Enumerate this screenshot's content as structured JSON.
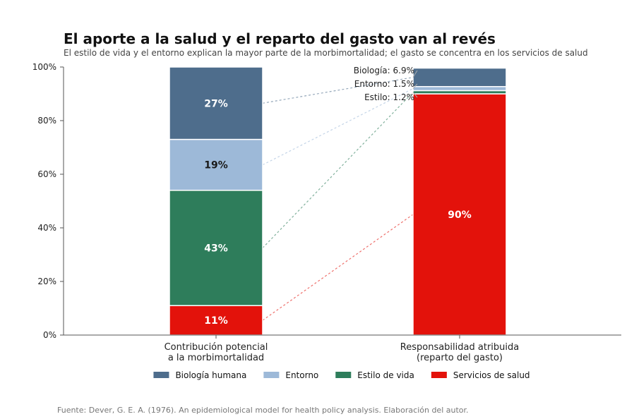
{
  "chart_data": {
    "type": "bar",
    "stacked": true,
    "title": "El aporte a la salud y el reparto del gasto van al revés",
    "subtitle": "El estilo de vida y el entorno explican la mayor parte de la morbimortalidad; el gasto se concentra en los servicios de salud",
    "categories": [
      [
        "Contribución potencial",
        "a la morbimortalidad"
      ],
      [
        "Responsabilidad atribuida",
        "(reparto del gasto)"
      ]
    ],
    "ylim": [
      0,
      100
    ],
    "yticks": [
      0,
      20,
      40,
      60,
      80,
      100
    ],
    "ytick_labels": [
      "0%",
      "20%",
      "40%",
      "60%",
      "80%",
      "100%"
    ],
    "series": [
      {
        "name": "Servicios de salud",
        "color": "#e3120b",
        "text_color": "#ffffff",
        "values": [
          11,
          90
        ],
        "labels": [
          "11%",
          "90%"
        ]
      },
      {
        "name": "Estilo de vida",
        "color": "#2e7d5b",
        "text_color": "#ffffff",
        "values": [
          43,
          1.2
        ],
        "labels": [
          "43%",
          ""
        ]
      },
      {
        "name": "Entorno",
        "color": "#9db9d8",
        "text_color": "#1a1a1a",
        "values": [
          19,
          1.5
        ],
        "labels": [
          "19%",
          ""
        ]
      },
      {
        "name": "Biología humana",
        "color": "#4e6d8c",
        "text_color": "#ffffff",
        "values": [
          27,
          6.9
        ],
        "labels": [
          "27%",
          ""
        ]
      }
    ],
    "annotations": [
      {
        "text": "Biología: 6.9%",
        "series": "Biología humana"
      },
      {
        "text": "Entorno: 1.5%",
        "series": "Entorno"
      },
      {
        "text": "Estilo: 1.2%",
        "series": "Estilo de vida"
      }
    ],
    "legend": {
      "placement": "bottom",
      "order": [
        "Biología humana",
        "Entorno",
        "Estilo de vida",
        "Servicios de salud"
      ]
    },
    "connector_lines": true,
    "grid": false
  },
  "source": "Fuente: Dever, G. E. A. (1976). An epidemiological model for health policy analysis. Elaboración del autor."
}
